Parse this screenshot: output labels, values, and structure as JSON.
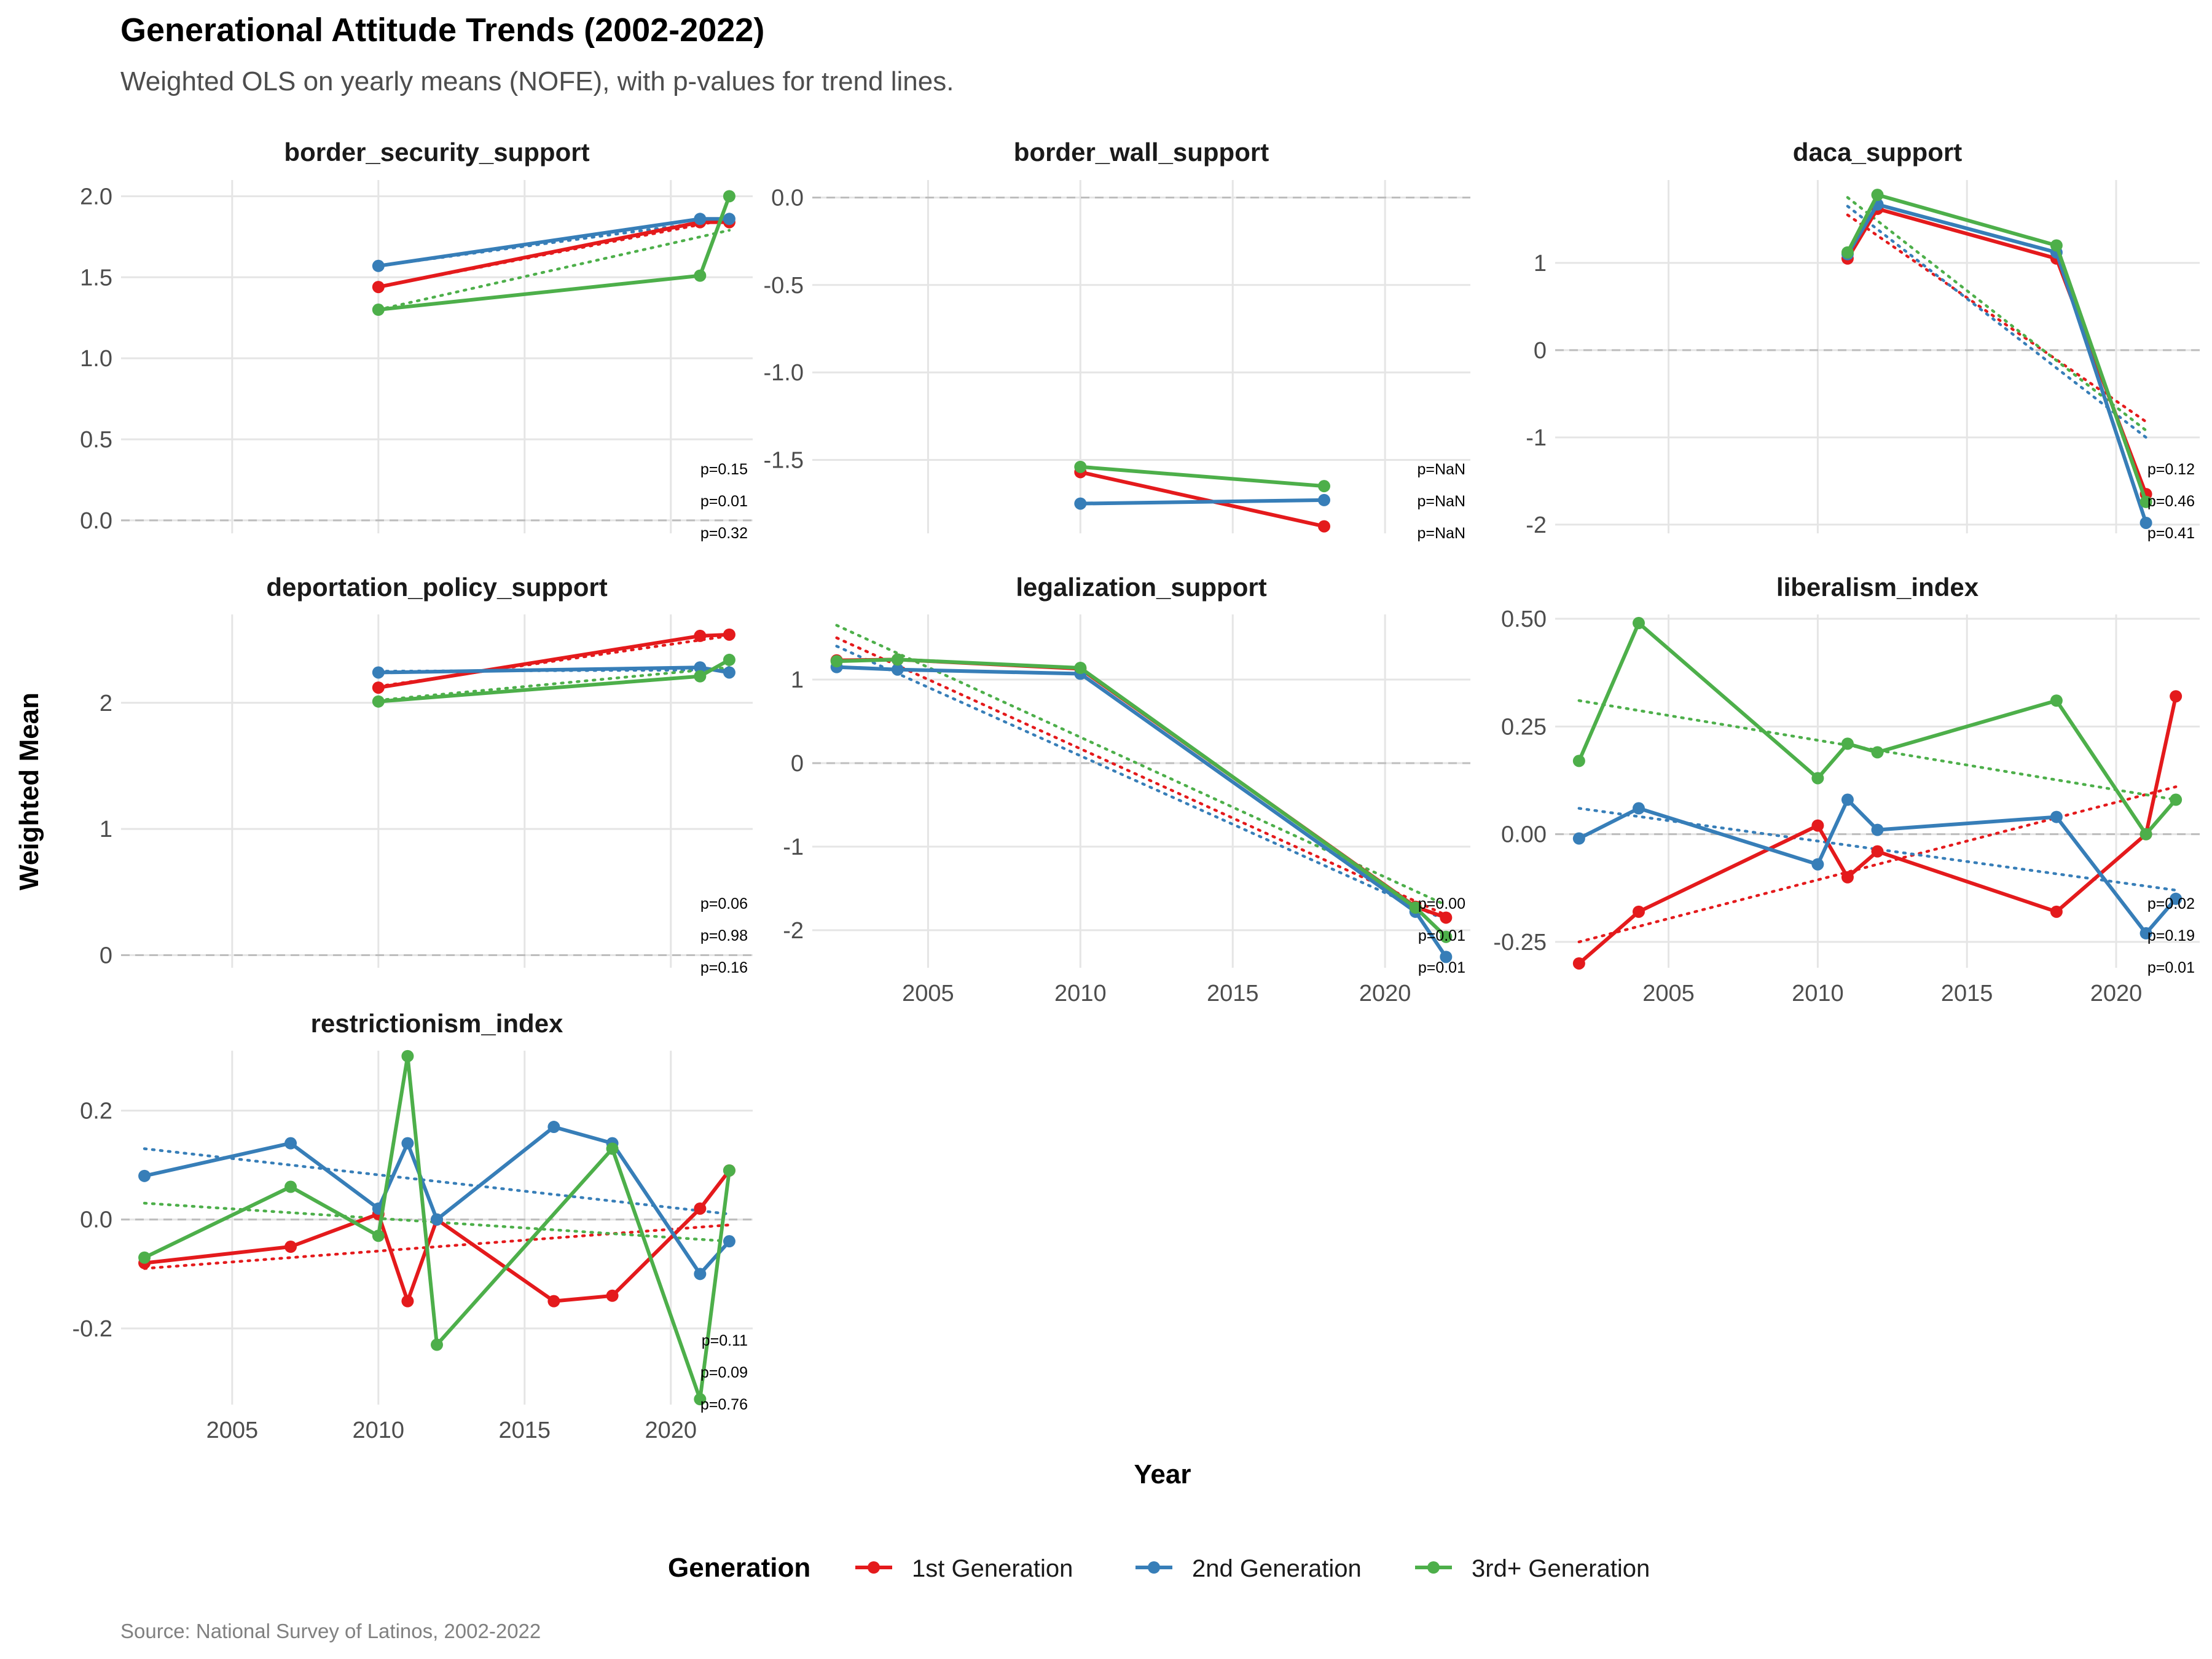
{
  "title": "Generational Attitude Trends (2002-2022)",
  "subtitle": "Weighted OLS on yearly means (NOFE), with p-values for trend lines.",
  "caption": "Source: National Survey of Latinos, 2002-2022",
  "colors": {
    "1st Generation": "#E41A1C",
    "2nd Generation": "#377EB8",
    "3rd+ Generation": "#4DAF4A"
  },
  "chart_data": {
    "type": "line",
    "xlabel": "Year",
    "ylabel": "Weighted Mean",
    "legend_title": "Generation",
    "legend_position": "bottom",
    "series_names": [
      "1st Generation",
      "2nd Generation",
      "3rd+ Generation"
    ],
    "xlim": [
      2001.2,
      2022.8
    ],
    "xticks": [
      2005,
      2010,
      2015,
      2020
    ],
    "grid": true,
    "facets": [
      {
        "name": "border_security_support",
        "ylim": [
          -0.08,
          2.1
        ],
        "yticks": [
          0,
          0.5,
          1,
          1.5,
          2
        ],
        "ytick_labels": [
          "0.0",
          "0.5",
          "1.0",
          "1.5",
          "2.0"
        ],
        "pvalues": [
          "p=0.15",
          "p=0.01",
          "p=0.32"
        ],
        "series": [
          {
            "points": [
              [
                2010,
                1.44
              ],
              [
                2021,
                1.84
              ],
              [
                2022,
                1.84
              ]
            ],
            "trend": [
              [
                2010,
                1.44
              ],
              [
                2022,
                1.86
              ]
            ]
          },
          {
            "points": [
              [
                2010,
                1.57
              ],
              [
                2021,
                1.86
              ],
              [
                2022,
                1.86
              ]
            ],
            "trend": [
              [
                2010,
                1.57
              ],
              [
                2022,
                1.86
              ]
            ]
          },
          {
            "points": [
              [
                2010,
                1.3
              ],
              [
                2021,
                1.51
              ],
              [
                2022,
                2.0
              ]
            ],
            "trend": [
              [
                2010,
                1.3
              ],
              [
                2022,
                1.79
              ]
            ]
          }
        ]
      },
      {
        "name": "border_wall_support",
        "ylim": [
          -1.92,
          0.1
        ],
        "yticks": [
          0,
          -0.5,
          -1,
          -1.5
        ],
        "ytick_labels": [
          "0.0",
          "-0.5",
          "-1.0",
          "-1.5"
        ],
        "pvalues": [
          "p=NaN",
          "p=NaN",
          "p=NaN"
        ],
        "series": [
          {
            "points": [
              [
                2010,
                -1.57
              ],
              [
                2018,
                -1.88
              ]
            ],
            "trend": []
          },
          {
            "points": [
              [
                2010,
                -1.75
              ],
              [
                2018,
                -1.73
              ]
            ],
            "trend": []
          },
          {
            "points": [
              [
                2010,
                -1.54
              ],
              [
                2018,
                -1.65
              ]
            ],
            "trend": []
          }
        ]
      },
      {
        "name": "daca_support",
        "ylim": [
          -2.1,
          1.95
        ],
        "yticks": [
          1,
          0,
          -1,
          -2
        ],
        "ytick_labels": [
          "1",
          "0",
          "-1",
          "-2"
        ],
        "pvalues": [
          "p=0.12",
          "p=0.46",
          "p=0.41"
        ],
        "series": [
          {
            "points": [
              [
                2011,
                1.05
              ],
              [
                2012,
                1.62
              ],
              [
                2018,
                1.05
              ],
              [
                2021,
                -1.65
              ]
            ],
            "trend": [
              [
                2011,
                1.55
              ],
              [
                2021,
                -0.82
              ]
            ]
          },
          {
            "points": [
              [
                2011,
                1.1
              ],
              [
                2012,
                1.67
              ],
              [
                2018,
                1.12
              ],
              [
                2021,
                -1.98
              ]
            ],
            "trend": [
              [
                2011,
                1.65
              ],
              [
                2021,
                -1.0
              ]
            ]
          },
          {
            "points": [
              [
                2011,
                1.12
              ],
              [
                2012,
                1.78
              ],
              [
                2018,
                1.2
              ],
              [
                2021,
                -1.74
              ]
            ],
            "trend": [
              [
                2011,
                1.75
              ],
              [
                2021,
                -0.92
              ]
            ]
          }
        ]
      },
      {
        "name": "deportation_policy_support",
        "ylim": [
          -0.1,
          2.7
        ],
        "yticks": [
          0,
          1,
          2
        ],
        "ytick_labels": [
          "0",
          "1",
          "2"
        ],
        "pvalues": [
          "p=0.06",
          "p=0.98",
          "p=0.16"
        ],
        "series": [
          {
            "points": [
              [
                2010,
                2.12
              ],
              [
                2021,
                2.53
              ],
              [
                2022,
                2.54
              ]
            ],
            "trend": [
              [
                2010,
                2.13
              ],
              [
                2022,
                2.53
              ]
            ]
          },
          {
            "points": [
              [
                2010,
                2.24
              ],
              [
                2021,
                2.28
              ],
              [
                2022,
                2.24
              ]
            ],
            "trend": [
              [
                2010,
                2.25
              ],
              [
                2022,
                2.26
              ]
            ]
          },
          {
            "points": [
              [
                2010,
                2.01
              ],
              [
                2021,
                2.21
              ],
              [
                2022,
                2.34
              ]
            ],
            "trend": [
              [
                2010,
                2.02
              ],
              [
                2022,
                2.28
              ]
            ]
          }
        ]
      },
      {
        "name": "legalization_support",
        "ylim": [
          -2.45,
          1.78
        ],
        "yticks": [
          1,
          0,
          -1,
          -2
        ],
        "ytick_labels": [
          "1",
          "0",
          "-1",
          "-2"
        ],
        "pvalues": [
          "p=0.00",
          "p=0.01",
          "p=0.01"
        ],
        "series": [
          {
            "points": [
              [
                2002,
                1.23
              ],
              [
                2004,
                1.24
              ],
              [
                2010,
                1.13
              ],
              [
                2021,
                -1.72
              ],
              [
                2022,
                -1.85
              ]
            ],
            "trend": [
              [
                2002,
                1.5
              ],
              [
                2022,
                -1.82
              ]
            ]
          },
          {
            "points": [
              [
                2002,
                1.15
              ],
              [
                2004,
                1.12
              ],
              [
                2010,
                1.07
              ],
              [
                2021,
                -1.78
              ],
              [
                2022,
                -2.32
              ]
            ],
            "trend": [
              [
                2002,
                1.4
              ],
              [
                2022,
                -1.88
              ]
            ]
          },
          {
            "points": [
              [
                2002,
                1.22
              ],
              [
                2004,
                1.24
              ],
              [
                2010,
                1.14
              ],
              [
                2021,
                -1.73
              ],
              [
                2022,
                -2.08
              ]
            ],
            "trend": [
              [
                2002,
                1.65
              ],
              [
                2022,
                -1.7
              ]
            ]
          }
        ]
      },
      {
        "name": "liberalism_index",
        "ylim": [
          -0.31,
          0.51
        ],
        "yticks": [
          0.5,
          0.25,
          0,
          -0.25
        ],
        "ytick_labels": [
          "0.50",
          "0.25",
          "0.00",
          "-0.25"
        ],
        "pvalues": [
          "p=0.02",
          "p=0.19",
          "p=0.01"
        ],
        "series": [
          {
            "points": [
              [
                2002,
                -0.3
              ],
              [
                2004,
                -0.18
              ],
              [
                2010,
                0.02
              ],
              [
                2011,
                -0.1
              ],
              [
                2012,
                -0.04
              ],
              [
                2018,
                -0.18
              ],
              [
                2021,
                0.0
              ],
              [
                2022,
                0.32
              ]
            ],
            "trend": [
              [
                2002,
                -0.25
              ],
              [
                2022,
                0.11
              ]
            ]
          },
          {
            "points": [
              [
                2002,
                -0.01
              ],
              [
                2004,
                0.06
              ],
              [
                2010,
                -0.07
              ],
              [
                2011,
                0.08
              ],
              [
                2012,
                0.01
              ],
              [
                2018,
                0.04
              ],
              [
                2021,
                -0.23
              ],
              [
                2022,
                -0.15
              ]
            ],
            "trend": [
              [
                2002,
                0.06
              ],
              [
                2022,
                -0.13
              ]
            ]
          },
          {
            "points": [
              [
                2002,
                0.17
              ],
              [
                2004,
                0.49
              ],
              [
                2010,
                0.13
              ],
              [
                2011,
                0.21
              ],
              [
                2012,
                0.19
              ],
              [
                2018,
                0.31
              ],
              [
                2021,
                0.0
              ],
              [
                2022,
                0.08
              ]
            ],
            "trend": [
              [
                2002,
                0.31
              ],
              [
                2022,
                0.08
              ]
            ]
          }
        ]
      },
      {
        "name": "restrictionism_index",
        "ylim": [
          -0.34,
          0.31
        ],
        "yticks": [
          0.2,
          0,
          -0.2
        ],
        "ytick_labels": [
          "0.2",
          "0.0",
          "-0.2"
        ],
        "pvalues": [
          "p=0.11",
          "p=0.09",
          "p=0.76"
        ],
        "series": [
          {
            "points": [
              [
                2002,
                -0.08
              ],
              [
                2007,
                -0.05
              ],
              [
                2010,
                0.01
              ],
              [
                2011,
                -0.15
              ],
              [
                2012,
                0.0
              ],
              [
                2016,
                -0.15
              ],
              [
                2018,
                -0.14
              ],
              [
                2021,
                0.02
              ],
              [
                2022,
                0.09
              ]
            ],
            "trend": [
              [
                2002,
                -0.09
              ],
              [
                2022,
                -0.01
              ]
            ]
          },
          {
            "points": [
              [
                2002,
                0.08
              ],
              [
                2007,
                0.14
              ],
              [
                2010,
                0.02
              ],
              [
                2011,
                0.14
              ],
              [
                2012,
                0.0
              ],
              [
                2016,
                0.17
              ],
              [
                2018,
                0.14
              ],
              [
                2021,
                -0.1
              ],
              [
                2022,
                -0.04
              ]
            ],
            "trend": [
              [
                2002,
                0.13
              ],
              [
                2022,
                0.01
              ]
            ]
          },
          {
            "points": [
              [
                2002,
                -0.07
              ],
              [
                2007,
                0.06
              ],
              [
                2010,
                -0.03
              ],
              [
                2011,
                0.3
              ],
              [
                2012,
                -0.23
              ],
              [
                2018,
                0.13
              ],
              [
                2021,
                -0.33
              ],
              [
                2022,
                0.09
              ]
            ],
            "trend": [
              [
                2002,
                0.03
              ],
              [
                2022,
                -0.04
              ]
            ]
          }
        ]
      }
    ]
  }
}
